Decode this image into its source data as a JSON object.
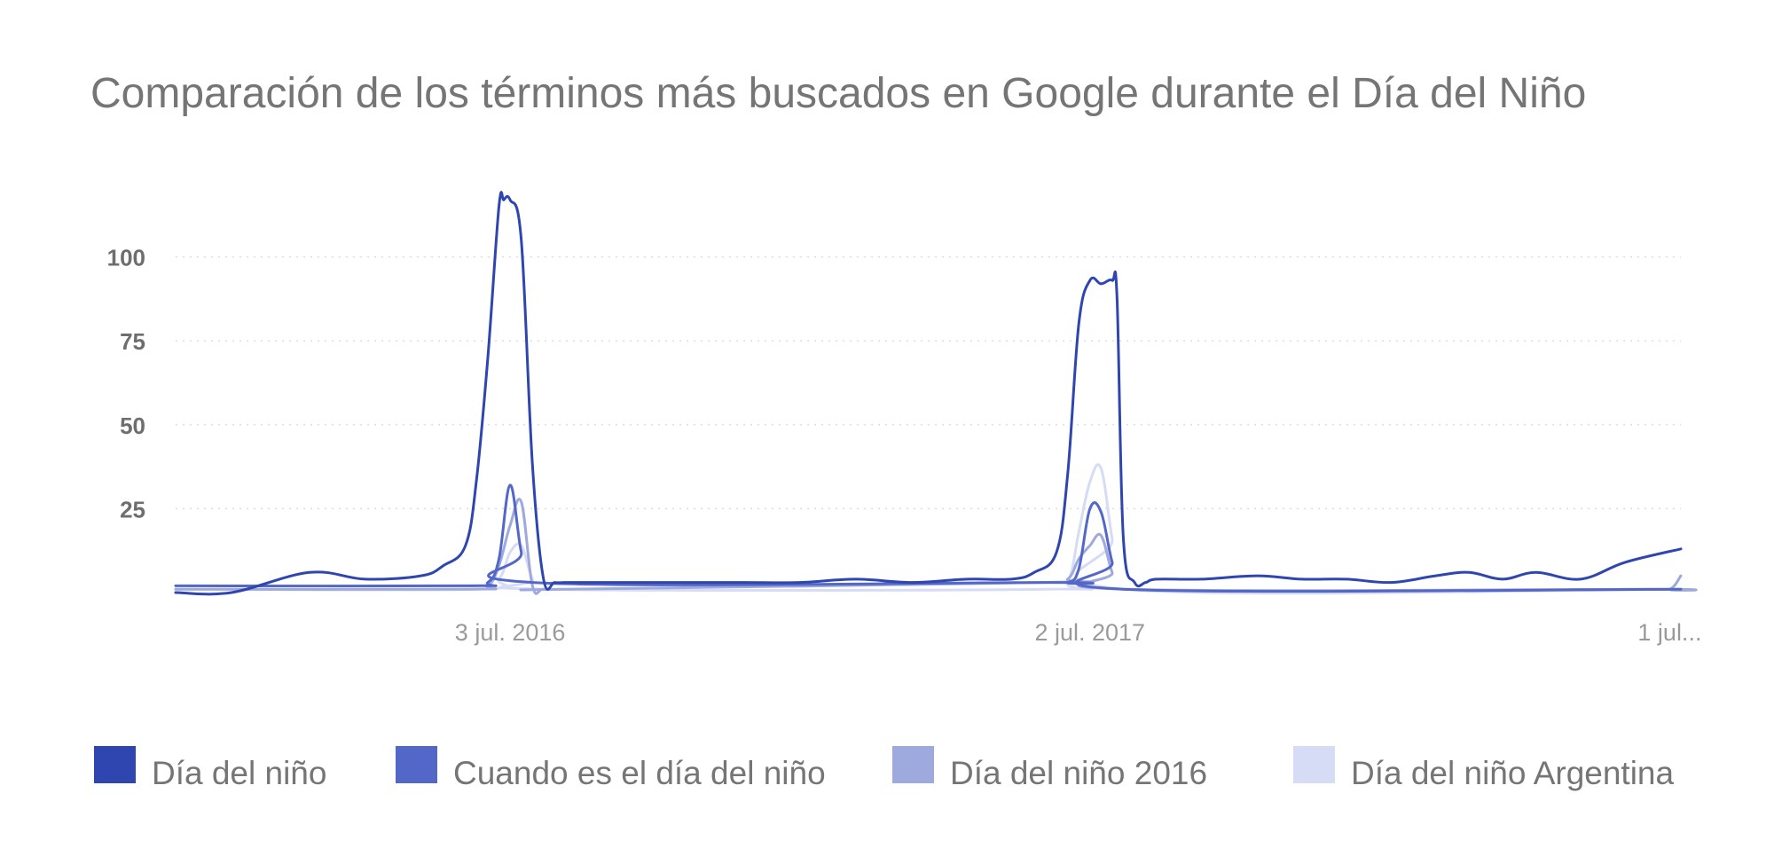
{
  "chart_data": {
    "type": "line",
    "title": "Comparación de los términos más buscados en Google durante el Día del Niño",
    "xlabel": "",
    "ylabel": "",
    "ylim": [
      0,
      125
    ],
    "yticks": [
      25,
      50,
      75,
      100
    ],
    "xlim": [
      "2015-12-06",
      "2018-07-08"
    ],
    "xticks": [
      {
        "x": "2016-07-03",
        "label": "3 jul. 2016"
      },
      {
        "x": "2017-07-02",
        "label": "2 jul. 2017"
      },
      {
        "x": "2018-07-01",
        "label": "1 jul..."
      }
    ],
    "grid": true,
    "legend_position": "bottom",
    "colors": [
      "#2f45b0",
      "#5367c8",
      "#9ea9de",
      "#d6dbf6"
    ],
    "series": [
      {
        "name": "Día del niño",
        "color": "#2f45b0",
        "x": [
          "2015-12-06",
          "2016-01-10",
          "2016-02-28",
          "2016-04-03",
          "2016-05-08",
          "2016-05-22",
          "2016-06-05",
          "2016-06-12",
          "2016-06-19",
          "2016-06-26",
          "2016-06-29",
          "2016-07-03",
          "2016-07-10",
          "2016-07-17",
          "2016-07-24",
          "2016-07-31",
          "2016-08-07",
          "2016-08-14",
          "2016-09-18",
          "2016-10-23",
          "2016-11-27",
          "2017-01-01",
          "2017-02-05",
          "2017-03-12",
          "2017-04-16",
          "2017-05-14",
          "2017-05-28",
          "2017-06-11",
          "2017-06-18",
          "2017-06-25",
          "2017-07-02",
          "2017-07-09",
          "2017-07-16",
          "2017-07-19",
          "2017-07-23",
          "2017-07-30",
          "2017-08-06",
          "2017-08-13",
          "2017-09-10",
          "2017-10-15",
          "2017-11-12",
          "2017-12-10",
          "2018-01-07",
          "2018-02-04",
          "2018-02-25",
          "2018-03-18",
          "2018-04-08",
          "2018-05-06",
          "2018-06-03",
          "2018-07-08"
        ],
        "values": [
          0,
          0,
          6,
          4,
          5,
          8,
          14,
          34,
          70,
          115,
          117,
          117,
          105,
          38,
          4,
          3,
          3,
          3,
          3,
          3,
          3,
          3,
          4,
          3,
          4,
          4,
          6,
          12,
          35,
          80,
          93,
          92,
          93,
          88,
          16,
          3,
          3,
          4,
          4,
          5,
          4,
          4,
          3,
          5,
          6,
          4,
          6,
          4,
          9,
          13
        ]
      },
      {
        "name": "Cuando es el día del niño",
        "color": "#5367c8",
        "x": [
          "2015-12-06",
          "2016-06-05",
          "2016-06-19",
          "2016-06-26",
          "2016-07-03",
          "2016-07-10",
          "2016-07-17",
          "2017-06-04",
          "2017-06-18",
          "2017-06-25",
          "2017-07-02",
          "2017-07-09",
          "2017-07-16",
          "2017-07-23",
          "2018-07-08"
        ],
        "values": [
          2,
          2,
          3,
          10,
          32,
          12,
          3,
          3,
          3,
          7,
          25,
          24,
          9,
          1,
          1
        ]
      },
      {
        "name": "Día del niño 2016",
        "color": "#9ea9de",
        "x": [
          "2015-12-06",
          "2016-06-05",
          "2016-06-19",
          "2016-06-26",
          "2016-07-03",
          "2016-07-10",
          "2016-07-17",
          "2016-07-24",
          "2016-08-07",
          "2017-06-04",
          "2017-06-18",
          "2017-06-25",
          "2017-07-02",
          "2017-07-09",
          "2017-07-16",
          "2017-07-23",
          "2018-06-17",
          "2018-07-01",
          "2018-07-08"
        ],
        "values": [
          1,
          1,
          2,
          8,
          20,
          27,
          2,
          1,
          1,
          3,
          4,
          10,
          14,
          17,
          6,
          1,
          1,
          1,
          5
        ]
      },
      {
        "name": "Día del niño Argentina",
        "color": "#d6dbf6",
        "x": [
          "2015-12-06",
          "2016-06-12",
          "2016-06-26",
          "2016-07-03",
          "2016-07-10",
          "2016-07-17",
          "2016-07-24",
          "2017-06-04",
          "2017-06-18",
          "2017-06-25",
          "2017-07-02",
          "2017-07-09",
          "2017-07-16",
          "2017-07-23",
          "2018-07-08"
        ],
        "values": [
          1,
          1,
          4,
          12,
          14,
          4,
          1,
          1,
          3,
          18,
          33,
          37,
          16,
          1,
          1
        ]
      }
    ]
  }
}
